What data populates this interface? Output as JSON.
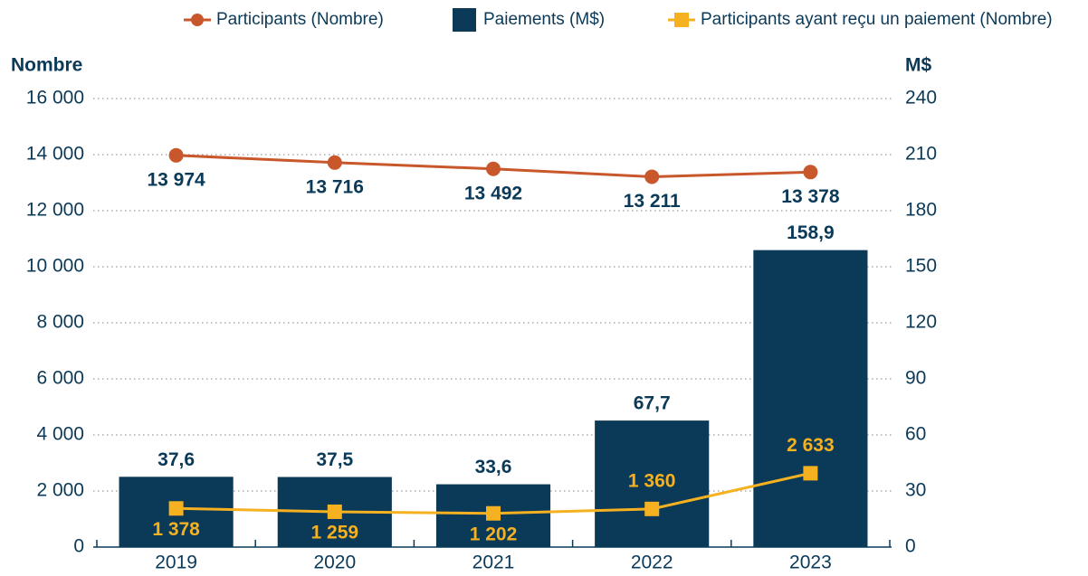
{
  "chart_data": {
    "type": "bar-line",
    "y_label": "Nombre",
    "y2_label": "M$",
    "categories": [
      "2019",
      "2020",
      "2021",
      "2022",
      "2023"
    ],
    "series": [
      {
        "name": "Participants (Nombre)",
        "type": "line",
        "marker": "circle",
        "color": "#c8582b",
        "axis": "y",
        "values": [
          13974,
          13716,
          13492,
          13211,
          13378
        ],
        "value_labels": [
          "13 974",
          "13 716",
          "13 492",
          "13 211",
          "13 378"
        ]
      },
      {
        "name": "Paiements (M$)",
        "type": "bar",
        "color": "#0b3958",
        "axis": "y2",
        "values": [
          37.6,
          37.5,
          33.6,
          67.7,
          158.9
        ],
        "value_labels": [
          "37,6",
          "37,5",
          "33,6",
          "67,7",
          "158,9"
        ]
      },
      {
        "name": "Participants ayant reçu un paiement (Nombre)",
        "type": "line",
        "marker": "square",
        "color": "#f5b120",
        "axis": "y",
        "values": [
          1378,
          1259,
          1202,
          1360,
          2633
        ],
        "value_labels": [
          "1 378",
          "1 259",
          "1 202",
          "1 360",
          "2 633"
        ]
      }
    ],
    "ylim": [
      0,
      16000
    ],
    "yticks": [
      0,
      {
        "value": 2000,
        "label": "2 000"
      },
      {
        "value": 4000,
        "label": "4 000"
      },
      {
        "value": 6000,
        "label": "6 000"
      },
      {
        "value": 8000,
        "label": "8 000"
      },
      {
        "value": 10000,
        "label": "10 000"
      },
      {
        "value": 12000,
        "label": "12 000"
      },
      {
        "value": 14000,
        "label": "14 000"
      },
      {
        "value": 16000,
        "label": "16 000"
      }
    ],
    "y2lim": [
      0,
      240
    ],
    "y2ticks": [
      0,
      30,
      60,
      90,
      120,
      150,
      180,
      210,
      240
    ],
    "grid": true,
    "legend": "top"
  }
}
